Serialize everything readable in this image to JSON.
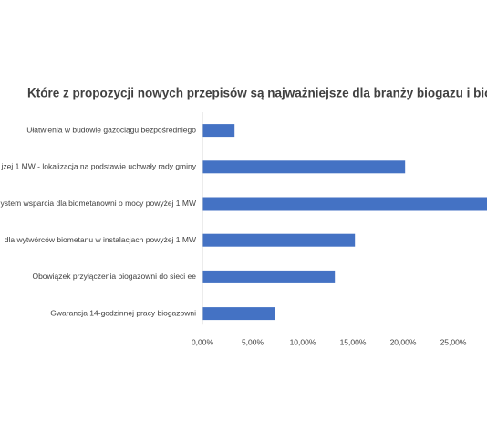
{
  "chart_data": {
    "type": "hbar",
    "title": "Które z propozycji nowych przepisów są najważniejsze dla branży biogazu i biometanu",
    "categories": [
      "Ułatwienia w budowie gazociągu bezpośredniego",
      "jżej 1 MW - lokalizacja na podstawie uchwały rady gminy",
      "ystem wsparcia dla biometanowni o mocy powyżej 1 MW",
      "dla wytwórców biometanu w instalacjach powyżej 1 MW",
      "Obowiązek przyłączenia biogazowni  do sieci ee",
      "Gwarancja 14-godzinnej pracy biogazowni"
    ],
    "values": [
      3.2,
      20.2,
      29,
      15.2,
      13.2,
      7.2
    ],
    "color": "#4472c4",
    "xlim": [
      0,
      30
    ],
    "xticks": [
      {
        "value": 0,
        "label": "0,00%"
      },
      {
        "value": 5,
        "label": "5,00%"
      },
      {
        "value": 10,
        "label": "10,00%"
      },
      {
        "value": 15,
        "label": "15,00%"
      },
      {
        "value": 20,
        "label": "20,00%"
      },
      {
        "value": 25,
        "label": "25,00%"
      }
    ]
  }
}
